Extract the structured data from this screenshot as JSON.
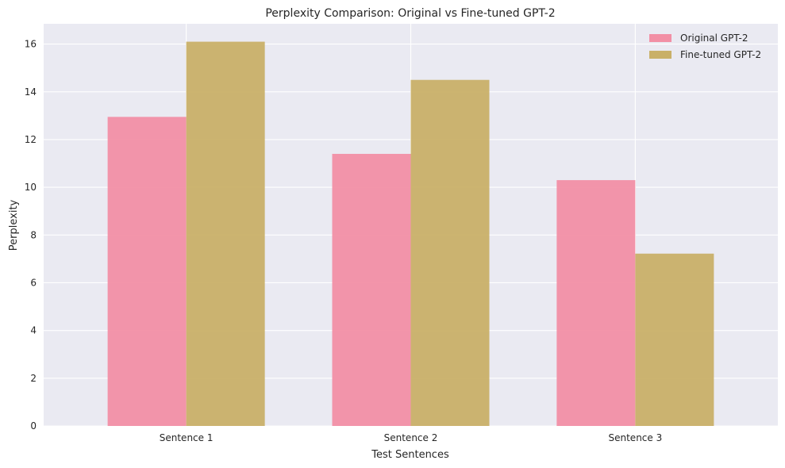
{
  "chart_data": {
    "type": "bar",
    "title": "Perplexity Comparison: Original vs Fine-tuned GPT-2",
    "xlabel": "Test Sentences",
    "ylabel": "Perplexity",
    "categories": [
      "Sentence 1",
      "Sentence 2",
      "Sentence 3"
    ],
    "series": [
      {
        "name": "Original GPT-2",
        "values": [
          12.95,
          11.4,
          10.3
        ],
        "color": "#f28fa5"
      },
      {
        "name": "Fine-tuned GPT-2",
        "values": [
          16.1,
          14.5,
          7.22
        ],
        "color": "#c9b068"
      }
    ],
    "ylim": [
      0,
      16.85
    ],
    "yticks": [
      0,
      2,
      4,
      6,
      8,
      10,
      12,
      14,
      16
    ],
    "grid": true,
    "legend_position": "top-right",
    "background": "#eaeaf2"
  }
}
